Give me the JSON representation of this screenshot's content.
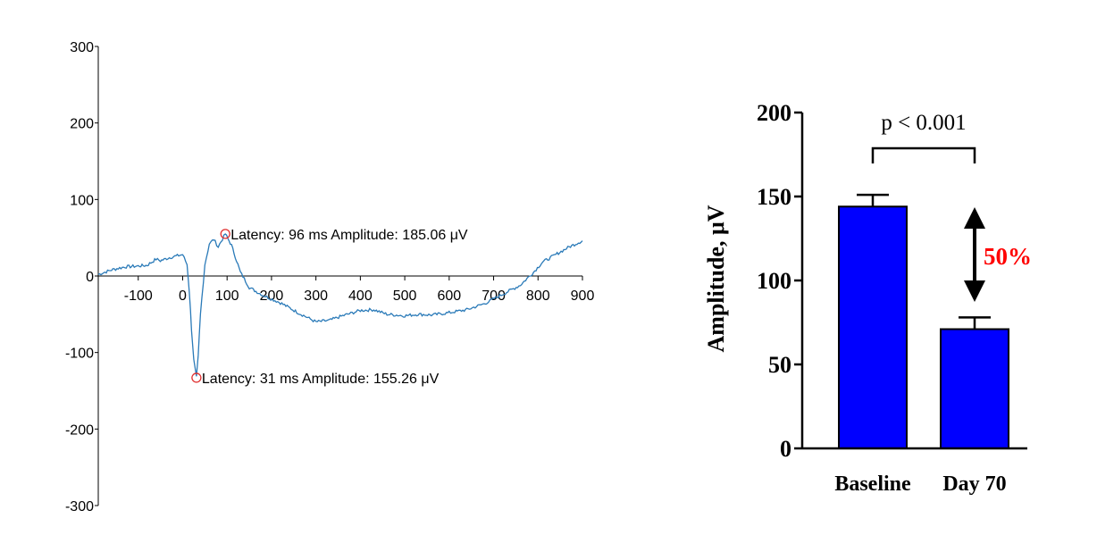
{
  "chart_data": [
    {
      "type": "line",
      "title": "",
      "xlabel": "",
      "ylabel": "",
      "xlim": [
        -190,
        900
      ],
      "ylim": [
        -300,
        300
      ],
      "x_ticks": [
        "-100",
        "0",
        "100",
        "200",
        "300",
        "400",
        "500",
        "600",
        "700",
        "800",
        "900"
      ],
      "y_ticks": [
        "300",
        "200",
        "100",
        "0",
        "-100",
        "-200",
        "-300"
      ],
      "series": [
        {
          "name": "",
          "color": "#2a7ab8",
          "x": [
            -190,
            -160,
            -130,
            -100,
            -80,
            -60,
            -50,
            -30,
            0,
            10,
            15,
            20,
            25,
            31,
            35,
            40,
            50,
            60,
            70,
            80,
            96,
            110,
            130,
            150,
            180,
            220,
            260,
            300,
            330,
            360,
            400,
            430,
            460,
            500,
            530,
            560,
            600,
            640,
            680,
            720,
            760,
            790,
            810,
            840,
            870,
            900
          ],
          "y": [
            2,
            8,
            12,
            13,
            14,
            22,
            20,
            24,
            28,
            15,
            -20,
            -70,
            -110,
            -133,
            -105,
            -50,
            15,
            42,
            48,
            38,
            55,
            40,
            5,
            -15,
            -25,
            -35,
            -48,
            -60,
            -58,
            -52,
            -45,
            -44,
            -50,
            -52,
            -50,
            -51,
            -48,
            -44,
            -36,
            -24,
            -12,
            5,
            18,
            28,
            38,
            46
          ]
        }
      ],
      "annotations": [
        {
          "x": 96,
          "y": 55,
          "text": "Latency: 96 ms Amplitude: 185.06 μV"
        },
        {
          "x": 31,
          "y": -133,
          "text": "Latency: 31 ms Amplitude: 155.26 μV"
        }
      ]
    },
    {
      "type": "bar",
      "title": "",
      "xlabel": "",
      "ylabel": "Amplitude, μV",
      "ylim": [
        0,
        200
      ],
      "y_ticks": [
        "0",
        "50",
        "100",
        "150",
        "200"
      ],
      "categories": [
        "Baseline",
        "Day 70"
      ],
      "values": [
        144,
        71
      ],
      "errors": [
        7,
        7
      ],
      "bar_color": "#0000ff",
      "annotations": {
        "significance": "p < 0.001",
        "reduction": "50%",
        "reduction_color": "#ff0000"
      }
    }
  ]
}
